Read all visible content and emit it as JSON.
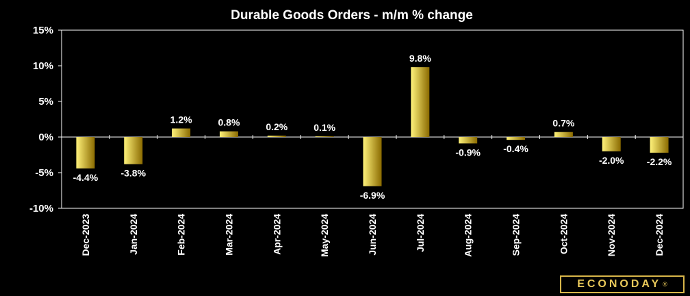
{
  "chart_data": {
    "type": "bar",
    "title": "Durable Goods Orders - m/m % change",
    "xlabel": "",
    "ylabel": "",
    "ylim": [
      -10,
      15
    ],
    "y_ticks": [
      "15%",
      "10%",
      "5%",
      "0%",
      "-5%",
      "-10%"
    ],
    "y_tick_values": [
      15,
      10,
      5,
      0,
      -5,
      -10
    ],
    "grid": false,
    "categories": [
      "Dec-2023",
      "Jan-2024",
      "Feb-2024",
      "Mar-2024",
      "Apr-2024",
      "May-2024",
      "Jun-2024",
      "Jul-2024",
      "Aug-2024",
      "Sep-2024",
      "Oct-2024",
      "Nov-2024",
      "Dec-2024"
    ],
    "values": [
      -4.4,
      -3.8,
      1.2,
      0.8,
      0.2,
      0.1,
      -6.9,
      9.8,
      -0.9,
      -0.4,
      0.7,
      -2.0,
      -2.2
    ],
    "data_labels": [
      "-4.4%",
      "-3.8%",
      "1.2%",
      "0.8%",
      "0.2%",
      "0.1%",
      "-6.9%",
      "9.8%",
      "-0.9%",
      "-0.4%",
      "0.7%",
      "-2.0%",
      "-2.2%"
    ],
    "bar_color_light": "#fff27a",
    "bar_color_dark": "#8a6a00"
  },
  "logo": {
    "text": "ECONODAY",
    "mark": "®"
  }
}
